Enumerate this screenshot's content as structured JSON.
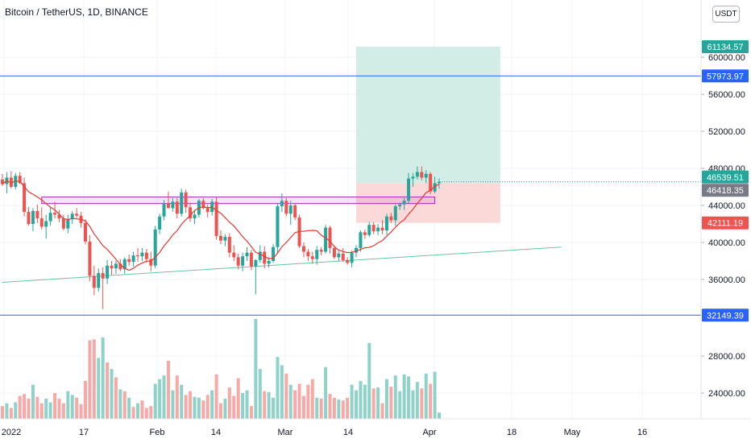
{
  "header": {
    "title": "Bitcoin / TetherUS, 1D, BINANCE"
  },
  "toolbar": {
    "currency": "USDT"
  },
  "axis": {
    "y_ticks": [
      "60000.00",
      "56000.00",
      "52000.00",
      "48000.00",
      "44000.00",
      "40000.00",
      "36000.00",
      "28000.00",
      "24000.00"
    ],
    "x_ticks": [
      "2022",
      "17",
      "Feb",
      "14",
      "Mar",
      "14",
      "Apr",
      "18",
      "May",
      "16"
    ]
  },
  "price_labels": {
    "target": "61134.57",
    "upper_line": "57973.97",
    "last_price": "46539.51",
    "entry": "46418.35",
    "stop": "42111.19",
    "lower_line": "32149.39"
  },
  "colors": {
    "up": "#26a69a",
    "down": "#ef5350",
    "up_volume": "#8fd3c8",
    "down_volume": "#f7a9a7",
    "ma_line": "#e53935",
    "hline": "#2962ff",
    "trendline": "#6cc3a4",
    "zone_stroke": "#9c27b0",
    "profit_fill": "#d1ede6",
    "loss_fill": "#fbd9d9",
    "entry_label": "#787b86",
    "grid": "#f0f3fa"
  },
  "chart_data": {
    "type": "candlestick",
    "title": "Bitcoin / TetherUS, 1D, BINANCE",
    "y_range": [
      31000,
      63000
    ],
    "volume_axis_range": [
      21000,
      32200
    ],
    "hlines": [
      57973.97,
      32149.39
    ],
    "trendline": [
      [
        0,
        35700
      ],
      [
        128,
        39500
      ]
    ],
    "resistance_zone": {
      "from_index": 9,
      "to_index": 99,
      "low": 44200,
      "high": 44900
    },
    "position": {
      "from_index": 81,
      "to_index": 114,
      "entry": 46418.35,
      "target": 61134.57,
      "stop": 42111.19
    },
    "last_price": 46539.51,
    "candles": [
      [
        46800,
        47400,
        46100,
        46300
      ],
      [
        46300,
        47600,
        45300,
        47000
      ],
      [
        47000,
        47700,
        45800,
        46000
      ],
      [
        46000,
        47500,
        45700,
        47200
      ],
      [
        47200,
        47600,
        46300,
        46400
      ],
      [
        46400,
        47000,
        42800,
        43300
      ],
      [
        43300,
        43800,
        41800,
        42000
      ],
      [
        42000,
        43700,
        41200,
        43400
      ],
      [
        43400,
        44100,
        42100,
        42600
      ],
      [
        42600,
        43800,
        41400,
        41700
      ],
      [
        41700,
        43000,
        40400,
        42300
      ],
      [
        42300,
        43800,
        41800,
        43200
      ],
      [
        43200,
        44400,
        42600,
        43000
      ],
      [
        43000,
        43500,
        42200,
        42600
      ],
      [
        42600,
        43000,
        41300,
        41500
      ],
      [
        41500,
        43000,
        41000,
        42500
      ],
      [
        42500,
        43400,
        42000,
        43100
      ],
      [
        43100,
        43700,
        42600,
        42900
      ],
      [
        42900,
        43300,
        41600,
        42100
      ],
      [
        42100,
        42500,
        39800,
        40100
      ],
      [
        40100,
        40800,
        35800,
        36400
      ],
      [
        36400,
        37500,
        34300,
        35100
      ],
      [
        35100,
        37200,
        34700,
        36700
      ],
      [
        36700,
        37300,
        32800,
        36100
      ],
      [
        36100,
        38100,
        35500,
        37500
      ],
      [
        37500,
        38000,
        36500,
        37200
      ],
      [
        37200,
        38000,
        36600,
        37700
      ],
      [
        37700,
        38200,
        36900,
        37100
      ],
      [
        37100,
        38400,
        36600,
        38200
      ],
      [
        38200,
        38700,
        37500,
        37900
      ],
      [
        37900,
        39000,
        37400,
        38600
      ],
      [
        38600,
        39400,
        37900,
        38500
      ],
      [
        38500,
        39400,
        38000,
        38900
      ],
      [
        38900,
        39300,
        37800,
        38200
      ],
      [
        38200,
        39000,
        36900,
        37500
      ],
      [
        37500,
        41800,
        37200,
        41400
      ],
      [
        41400,
        43100,
        40900,
        42800
      ],
      [
        42800,
        44600,
        42400,
        44200
      ],
      [
        44200,
        45500,
        43800,
        43700
      ],
      [
        43700,
        44800,
        43300,
        44400
      ],
      [
        44400,
        44800,
        42600,
        43100
      ],
      [
        43100,
        45800,
        42800,
        45400
      ],
      [
        45400,
        45700,
        43200,
        43800
      ],
      [
        43800,
        44300,
        42200,
        42600
      ],
      [
        42600,
        43500,
        42000,
        43000
      ],
      [
        43000,
        44700,
        42700,
        44500
      ],
      [
        44500,
        44800,
        43600,
        43700
      ],
      [
        43700,
        44100,
        42700,
        43300
      ],
      [
        43300,
        44700,
        42900,
        44400
      ],
      [
        44400,
        44900,
        40300,
        40700
      ],
      [
        40700,
        41300,
        39800,
        40200
      ],
      [
        40200,
        40900,
        39600,
        40600
      ],
      [
        40600,
        41000,
        38400,
        38900
      ],
      [
        38900,
        39700,
        38000,
        38400
      ],
      [
        38400,
        38800,
        37100,
        37500
      ],
      [
        37500,
        38900,
        36900,
        38500
      ],
      [
        38500,
        39500,
        38000,
        38900
      ],
      [
        38900,
        39200,
        37000,
        37400
      ],
      [
        37400,
        38200,
        34400,
        38100
      ],
      [
        38100,
        39700,
        37800,
        39000
      ],
      [
        39000,
        39600,
        37200,
        37700
      ],
      [
        37700,
        38400,
        37300,
        38000
      ],
      [
        38000,
        39800,
        37800,
        39500
      ],
      [
        39500,
        44200,
        38900,
        43900
      ],
      [
        43900,
        45300,
        43300,
        44500
      ],
      [
        44500,
        44800,
        42800,
        43100
      ],
      [
        43100,
        44500,
        41900,
        44000
      ],
      [
        44000,
        44200,
        42400,
        42700
      ],
      [
        42700,
        43000,
        39400,
        39600
      ],
      [
        39600,
        40000,
        38400,
        39000
      ],
      [
        39000,
        39300,
        38000,
        38500
      ],
      [
        38500,
        39000,
        37700,
        38200
      ],
      [
        38200,
        39600,
        37600,
        39200
      ],
      [
        39200,
        39500,
        38600,
        39000
      ],
      [
        39000,
        41900,
        38800,
        41600
      ],
      [
        41600,
        41800,
        38800,
        39400
      ],
      [
        39400,
        39700,
        38200,
        38400
      ],
      [
        38400,
        39100,
        38000,
        38800
      ],
      [
        38800,
        39400,
        37900,
        38100
      ],
      [
        38100,
        38400,
        37600,
        37800
      ],
      [
        37800,
        39100,
        37300,
        38900
      ],
      [
        38900,
        39700,
        38400,
        39400
      ],
      [
        39400,
        41300,
        39000,
        41100
      ],
      [
        41100,
        41400,
        40400,
        40800
      ],
      [
        40800,
        42200,
        40600,
        41900
      ],
      [
        41900,
        42200,
        40900,
        41200
      ],
      [
        41200,
        42000,
        40800,
        41600
      ],
      [
        41600,
        42400,
        40900,
        41300
      ],
      [
        41300,
        43100,
        40800,
        42800
      ],
      [
        42800,
        43200,
        42100,
        42400
      ],
      [
        42400,
        44100,
        41800,
        43900
      ],
      [
        43900,
        44300,
        43500,
        44100
      ],
      [
        44100,
        44800,
        43500,
        44500
      ],
      [
        44500,
        47500,
        44200,
        46900
      ],
      [
        46900,
        47500,
        46000,
        47100
      ],
      [
        47100,
        48200,
        46800,
        47600
      ],
      [
        47600,
        48200,
        46700,
        47000
      ],
      [
        47000,
        47800,
        46400,
        47400
      ],
      [
        47400,
        47600,
        45200,
        45500
      ],
      [
        45500,
        47100,
        45300,
        46400
      ],
      [
        46400,
        46900,
        45800,
        46540
      ]
    ],
    "volumes": [
      [
        22.6,
        false
      ],
      [
        22.9,
        true
      ],
      [
        22.4,
        false
      ],
      [
        23.0,
        true
      ],
      [
        23.7,
        false
      ],
      [
        23.9,
        false
      ],
      [
        23.4,
        false
      ],
      [
        24.9,
        true
      ],
      [
        23.6,
        false
      ],
      [
        22.9,
        false
      ],
      [
        23.4,
        true
      ],
      [
        23.0,
        true
      ],
      [
        24.0,
        false
      ],
      [
        23.4,
        false
      ],
      [
        22.9,
        false
      ],
      [
        24.2,
        true
      ],
      [
        23.8,
        true
      ],
      [
        23.5,
        false
      ],
      [
        22.8,
        false
      ],
      [
        25.3,
        false
      ],
      [
        29.7,
        false
      ],
      [
        29.8,
        false
      ],
      [
        27.8,
        true
      ],
      [
        30.0,
        true
      ],
      [
        27.3,
        false
      ],
      [
        26.6,
        true
      ],
      [
        25.7,
        false
      ],
      [
        24.4,
        true
      ],
      [
        24.2,
        false
      ],
      [
        23.5,
        true
      ],
      [
        22.5,
        false
      ],
      [
        22.9,
        true
      ],
      [
        23.2,
        false
      ],
      [
        22.4,
        false
      ],
      [
        22.6,
        false
      ],
      [
        25.0,
        true
      ],
      [
        25.5,
        true
      ],
      [
        25.9,
        true
      ],
      [
        27.5,
        false
      ],
      [
        24.3,
        true
      ],
      [
        25.9,
        false
      ],
      [
        24.9,
        true
      ],
      [
        23.8,
        false
      ],
      [
        24.2,
        false
      ],
      [
        23.6,
        true
      ],
      [
        23.5,
        true
      ],
      [
        23.2,
        false
      ],
      [
        23.8,
        false
      ],
      [
        24.3,
        true
      ],
      [
        26.0,
        false
      ],
      [
        22.9,
        false
      ],
      [
        23.4,
        true
      ],
      [
        24.6,
        false
      ],
      [
        23.7,
        false
      ],
      [
        25.6,
        false
      ],
      [
        24.0,
        true
      ],
      [
        24.3,
        true
      ],
      [
        22.6,
        false
      ],
      [
        32.0,
        true
      ],
      [
        26.6,
        true
      ],
      [
        24.2,
        false
      ],
      [
        24.1,
        true
      ],
      [
        23.5,
        true
      ],
      [
        27.9,
        true
      ],
      [
        27.0,
        true
      ],
      [
        26.1,
        false
      ],
      [
        24.9,
        true
      ],
      [
        24.3,
        false
      ],
      [
        25.0,
        false
      ],
      [
        23.7,
        false
      ],
      [
        24.9,
        false
      ],
      [
        25.5,
        false
      ],
      [
        23.5,
        true
      ],
      [
        23.4,
        false
      ],
      [
        26.8,
        true
      ],
      [
        23.9,
        false
      ],
      [
        23.5,
        false
      ],
      [
        23.3,
        true
      ],
      [
        23.2,
        false
      ],
      [
        23.5,
        false
      ],
      [
        24.9,
        true
      ],
      [
        24.3,
        true
      ],
      [
        25.3,
        true
      ],
      [
        24.9,
        true
      ],
      [
        29.4,
        true
      ],
      [
        24.5,
        false
      ],
      [
        24.6,
        true
      ],
      [
        22.9,
        false
      ],
      [
        25.5,
        true
      ],
      [
        24.7,
        false
      ],
      [
        25.9,
        true
      ],
      [
        24.2,
        true
      ],
      [
        26.0,
        true
      ],
      [
        25.8,
        true
      ],
      [
        24.3,
        true
      ],
      [
        25.2,
        true
      ],
      [
        24.5,
        false
      ],
      [
        26.1,
        true
      ],
      [
        25.0,
        false
      ],
      [
        26.3,
        true
      ],
      [
        21.9,
        true
      ]
    ]
  }
}
